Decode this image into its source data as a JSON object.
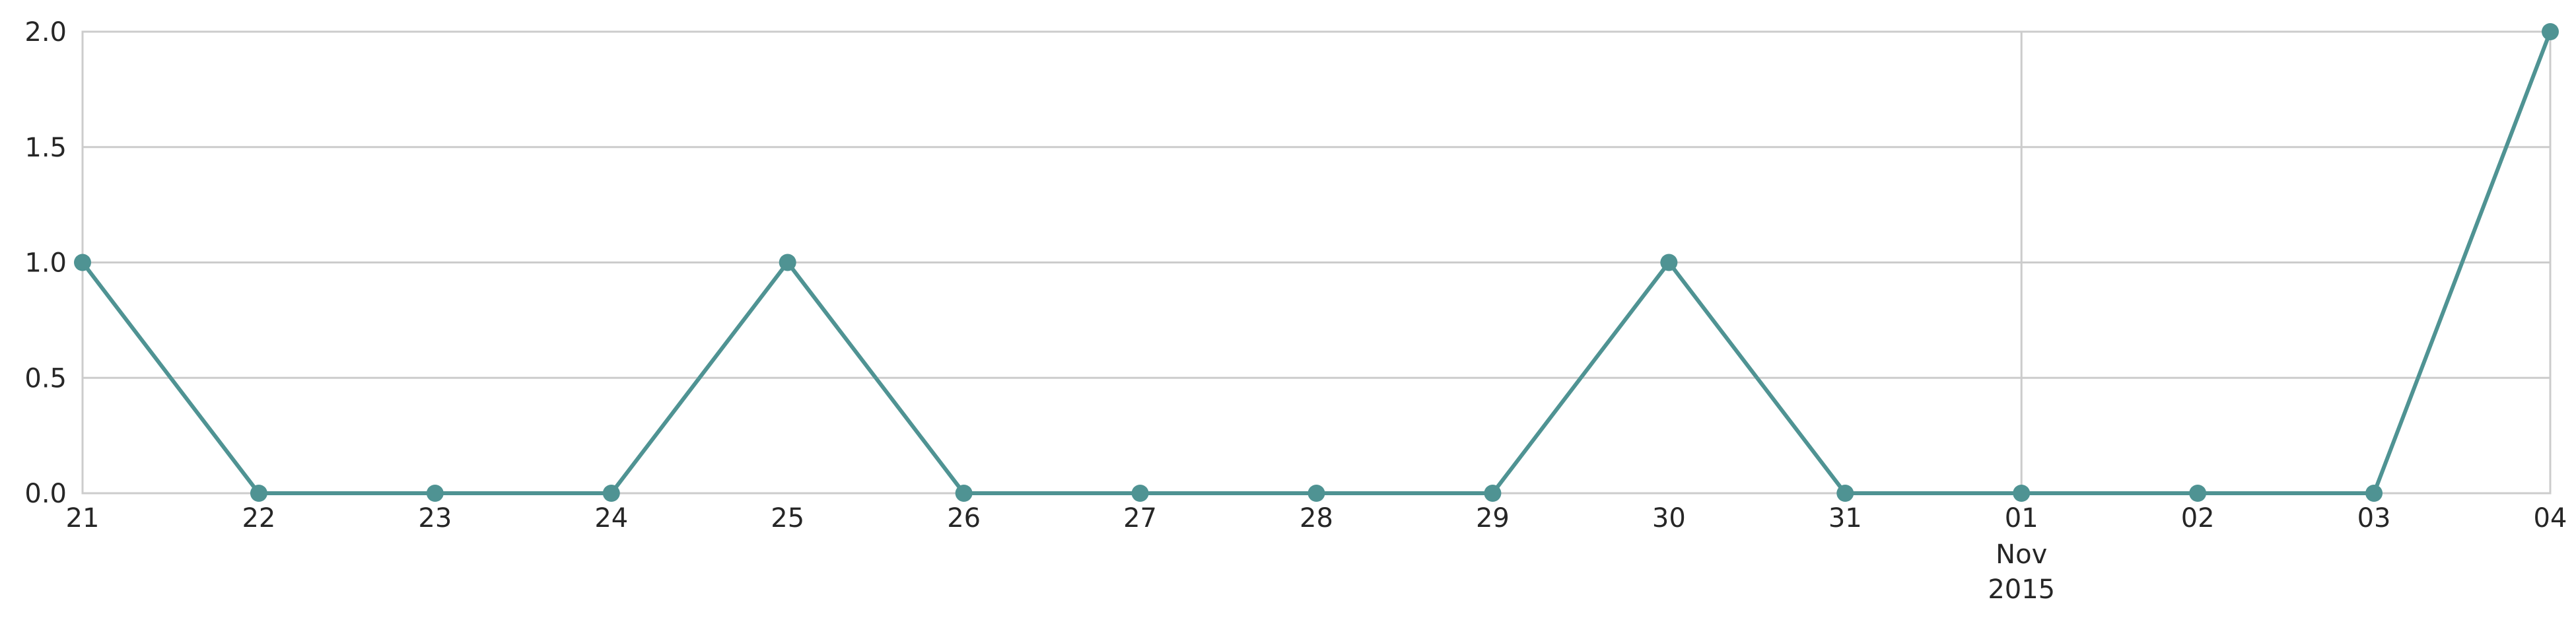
{
  "chart_data": {
    "type": "line",
    "title": "",
    "xlabel": "",
    "ylabel": "",
    "x": [
      "2015-10-21",
      "2015-10-22",
      "2015-10-23",
      "2015-10-24",
      "2015-10-25",
      "2015-10-26",
      "2015-10-27",
      "2015-10-28",
      "2015-10-29",
      "2015-10-30",
      "2015-10-31",
      "2015-11-01",
      "2015-11-02",
      "2015-11-03",
      "2015-11-04"
    ],
    "x_tick_labels": [
      "21",
      "22",
      "23",
      "24",
      "25",
      "26",
      "27",
      "28",
      "29",
      "30",
      "31",
      "01",
      "02",
      "03",
      "04"
    ],
    "x_secondary_label": {
      "month": "Nov",
      "year": "2015",
      "at": "2015-11-01"
    },
    "y_ticks": [
      "0.0",
      "0.5",
      "1.0",
      "1.5",
      "2.0"
    ],
    "ylim": [
      0,
      2
    ],
    "grid": true,
    "series": [
      {
        "values": [
          1,
          0,
          0,
          0,
          1,
          0,
          0,
          0,
          0,
          1,
          0,
          0,
          0,
          0,
          2
        ],
        "color": "#4f9393",
        "marker": "circle"
      }
    ]
  }
}
